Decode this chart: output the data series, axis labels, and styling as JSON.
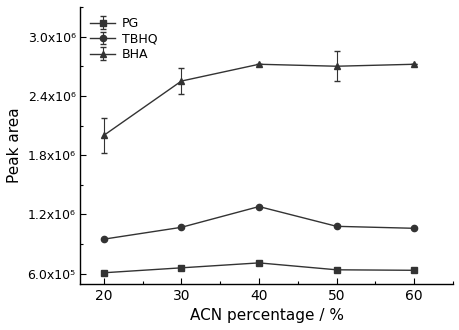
{
  "x": [
    20,
    30,
    40,
    50,
    60
  ],
  "PG": [
    610000.0,
    660000.0,
    710000.0,
    640000.0,
    635000.0
  ],
  "PG_err": [
    0,
    0,
    0,
    0,
    0
  ],
  "TBHQ": [
    950000.0,
    1070000.0,
    1280000.0,
    1080000.0,
    1060000.0
  ],
  "TBHQ_err": [
    0,
    0,
    0,
    0,
    0
  ],
  "BHA": [
    2000000.0,
    2550000.0,
    2720000.0,
    2700000.0,
    2720000.0
  ],
  "BHA_err": [
    180000.0,
    130000.0,
    0,
    150000.0,
    0
  ],
  "xlabel": "ACN percentage / %",
  "ylabel": "Peak area",
  "ylim_min": 500000.0,
  "ylim_max": 3300000.0,
  "yticks": [
    600000.0,
    1200000.0,
    1800000.0,
    2400000.0,
    3000000.0
  ],
  "ytick_labels": [
    "6.0x10⁵",
    "1.2x10⁶",
    "1.8x10⁶",
    "2.4x10⁶",
    "3.0x10⁶"
  ],
  "legend_labels": [
    "PG",
    "TBHQ",
    "BHA"
  ],
  "line_color": "#333333",
  "marker_square": "s",
  "marker_circle": "o",
  "marker_triangle": "^",
  "marker_size": 4.5,
  "line_width": 1.0,
  "bg_color": "#ffffff"
}
